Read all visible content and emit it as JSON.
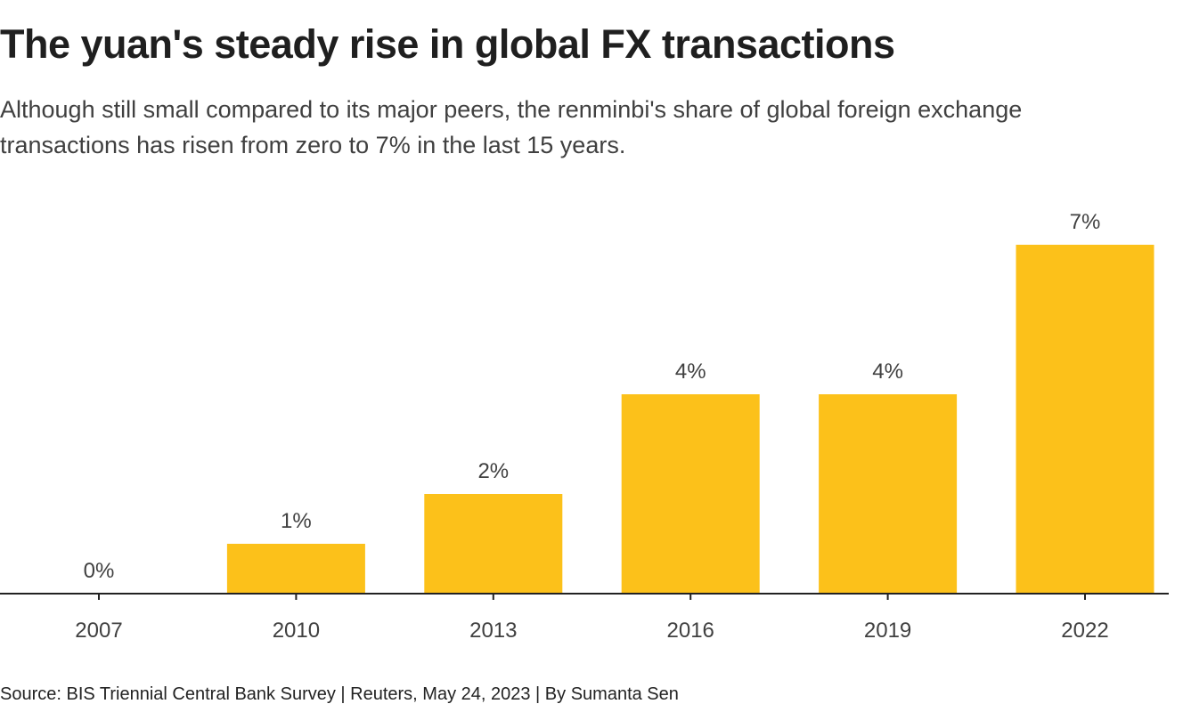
{
  "title": "The yuan's steady rise in global FX transactions",
  "subtitle": "Although still small compared to its major peers, the renminbi's share of global foreign exchange transactions has risen from zero to 7% in the last 15 years.",
  "source": "Source: BIS Triennial Central Bank Survey | Reuters, May 24, 2023 | By Sumanta Sen",
  "colors": {
    "bar": "#fcc11a",
    "text": "#404040",
    "axis": "#222222"
  },
  "chart_data": {
    "type": "bar",
    "title": "The yuan's steady rise in global FX transactions",
    "xlabel": "",
    "ylabel": "",
    "categories": [
      "2007",
      "2010",
      "2013",
      "2016",
      "2019",
      "2022"
    ],
    "values": [
      0,
      1,
      2,
      4,
      4,
      7
    ],
    "value_labels": [
      "0%",
      "1%",
      "2%",
      "4%",
      "4%",
      "7%"
    ],
    "ylim": [
      0,
      7
    ],
    "grid": false,
    "legend": "none"
  }
}
